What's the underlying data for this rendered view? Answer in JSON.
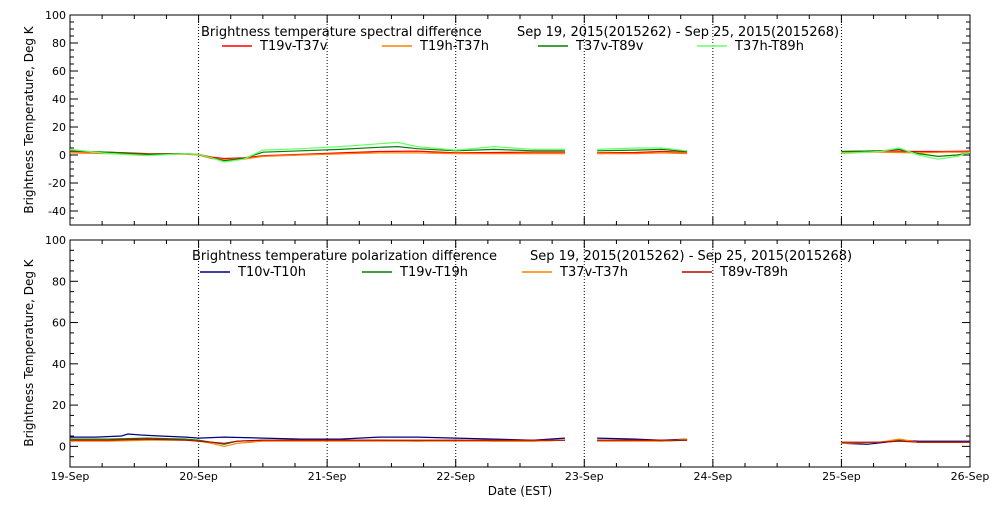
{
  "chart_data": [
    {
      "type": "line",
      "title": "Brightness temperature spectral difference",
      "date_range": "Sep 19, 2015(2015262) - Sep 25, 2015(2015268)",
      "ylabel": "Brightness Temperature, Deg K",
      "xlabel": "",
      "ylim": [
        -50,
        100
      ],
      "yticks": [
        -40,
        -20,
        0,
        20,
        40,
        60,
        80,
        100
      ],
      "xlim": [
        0,
        7
      ],
      "grid": "vertical dotted at each day",
      "legend_position": "top",
      "series": [
        {
          "name": "T19v-T37v",
          "color": "#ff0000",
          "points": [
            [
              0.0,
              2.5
            ],
            [
              0.3,
              2.0
            ],
            [
              0.6,
              1.0
            ],
            [
              0.9,
              0.8
            ],
            [
              1.0,
              0.5
            ],
            [
              1.1,
              -1.5
            ],
            [
              1.2,
              -2.5
            ],
            [
              1.35,
              -2.0
            ],
            [
              1.5,
              -0.5
            ],
            [
              1.8,
              0.5
            ],
            [
              2.1,
              1.5
            ],
            [
              2.4,
              2.5
            ],
            [
              2.7,
              2.8
            ],
            [
              3.0,
              1.5
            ],
            [
              3.3,
              1.8
            ],
            [
              3.6,
              2.0
            ],
            [
              3.85,
              2.0
            ],
            null,
            [
              4.1,
              1.5
            ],
            [
              4.4,
              1.8
            ],
            [
              4.6,
              2.5
            ],
            [
              4.8,
              2.0
            ],
            null,
            [
              6.0,
              2.5
            ],
            [
              6.3,
              3.0
            ],
            [
              6.6,
              2.5
            ],
            [
              6.8,
              2.5
            ],
            [
              7.0,
              2.8
            ]
          ]
        },
        {
          "name": "T19h-T37h",
          "color": "#ff8000",
          "points": [
            [
              0.0,
              1.5
            ],
            [
              0.3,
              1.0
            ],
            [
              0.6,
              0.5
            ],
            [
              0.9,
              0.5
            ],
            [
              1.0,
              0.0
            ],
            [
              1.1,
              -2.5
            ],
            [
              1.2,
              -3.5
            ],
            [
              1.35,
              -3.0
            ],
            [
              1.5,
              -1.0
            ],
            [
              1.8,
              0.0
            ],
            [
              2.1,
              0.8
            ],
            [
              2.4,
              1.5
            ],
            [
              2.7,
              1.5
            ],
            [
              3.0,
              1.0
            ],
            [
              3.3,
              1.0
            ],
            [
              3.6,
              1.0
            ],
            [
              3.85,
              1.0
            ],
            null,
            [
              4.1,
              1.0
            ],
            [
              4.4,
              1.0
            ],
            [
              4.6,
              1.5
            ],
            [
              4.8,
              1.0
            ],
            null,
            [
              6.0,
              2.0
            ],
            [
              6.3,
              2.0
            ],
            [
              6.6,
              1.5
            ],
            [
              6.8,
              2.0
            ],
            [
              7.0,
              2.0
            ]
          ]
        },
        {
          "name": "T37v-T89v",
          "color": "#008000",
          "points": [
            [
              0.0,
              3.0
            ],
            [
              0.3,
              2.0
            ],
            [
              0.6,
              0.5
            ],
            [
              0.9,
              1.0
            ],
            [
              1.0,
              0.5
            ],
            [
              1.1,
              -2.0
            ],
            [
              1.2,
              -4.0
            ],
            [
              1.35,
              -2.5
            ],
            [
              1.5,
              2.0
            ],
            [
              1.8,
              3.0
            ],
            [
              2.1,
              4.0
            ],
            [
              2.4,
              5.5
            ],
            [
              2.55,
              6.0
            ],
            [
              2.7,
              4.5
            ],
            [
              3.0,
              3.0
            ],
            [
              3.3,
              4.0
            ],
            [
              3.6,
              3.0
            ],
            [
              3.85,
              3.0
            ],
            null,
            [
              4.1,
              3.0
            ],
            [
              4.4,
              3.5
            ],
            [
              4.6,
              4.0
            ],
            [
              4.8,
              2.5
            ],
            null,
            [
              6.0,
              2.5
            ],
            [
              6.3,
              3.0
            ],
            [
              6.45,
              4.0
            ],
            [
              6.6,
              1.0
            ],
            [
              6.75,
              -1.0
            ],
            [
              6.9,
              0.0
            ],
            [
              7.0,
              1.5
            ]
          ]
        },
        {
          "name": "T37h-T89h",
          "color": "#66ff66",
          "points": [
            [
              0.0,
              4.0
            ],
            [
              0.3,
              1.0
            ],
            [
              0.6,
              -0.5
            ],
            [
              0.9,
              1.0
            ],
            [
              1.0,
              0.5
            ],
            [
              1.1,
              -2.0
            ],
            [
              1.2,
              -5.0
            ],
            [
              1.35,
              -3.0
            ],
            [
              1.5,
              3.5
            ],
            [
              1.8,
              4.5
            ],
            [
              2.1,
              6.0
            ],
            [
              2.4,
              8.0
            ],
            [
              2.55,
              9.0
            ],
            [
              2.7,
              6.0
            ],
            [
              3.0,
              3.5
            ],
            [
              3.3,
              6.0
            ],
            [
              3.6,
              4.0
            ],
            [
              3.85,
              4.0
            ],
            null,
            [
              4.1,
              4.0
            ],
            [
              4.4,
              5.0
            ],
            [
              4.6,
              5.0
            ],
            [
              4.8,
              3.0
            ],
            null,
            [
              6.0,
              1.0
            ],
            [
              6.3,
              2.5
            ],
            [
              6.45,
              5.0
            ],
            [
              6.6,
              0.0
            ],
            [
              6.75,
              -3.0
            ],
            [
              6.9,
              -1.0
            ],
            [
              7.0,
              2.0
            ]
          ]
        }
      ]
    },
    {
      "type": "line",
      "title": "Brightness temperature polarization difference",
      "date_range": "Sep 19, 2015(2015262) - Sep 25, 2015(2015268)",
      "ylabel": "Brightness Temperature, Deg K",
      "xlabel": "Date (EST)",
      "ylim": [
        -10,
        100
      ],
      "yticks": [
        0,
        20,
        40,
        60,
        80,
        100
      ],
      "xlim": [
        0,
        7
      ],
      "xticks": [
        "19-Sep",
        "20-Sep",
        "21-Sep",
        "22-Sep",
        "23-Sep",
        "24-Sep",
        "25-Sep",
        "26-Sep"
      ],
      "grid": "vertical dotted at each day",
      "legend_position": "top",
      "series": [
        {
          "name": "T10v-T10h",
          "color": "#000080",
          "points": [
            [
              0.0,
              4.5
            ],
            [
              0.2,
              4.5
            ],
            [
              0.4,
              5.0
            ],
            [
              0.45,
              6.0
            ],
            [
              0.55,
              5.5
            ],
            [
              0.7,
              5.0
            ],
            [
              0.9,
              4.5
            ],
            [
              1.0,
              4.0
            ],
            [
              1.2,
              4.5
            ],
            [
              1.5,
              4.0
            ],
            [
              1.8,
              3.5
            ],
            [
              2.1,
              3.5
            ],
            [
              2.4,
              4.5
            ],
            [
              2.7,
              4.5
            ],
            [
              3.0,
              4.0
            ],
            [
              3.3,
              3.5
            ],
            [
              3.6,
              3.0
            ],
            [
              3.85,
              4.0
            ],
            null,
            [
              4.1,
              4.0
            ],
            [
              4.4,
              3.5
            ],
            [
              4.6,
              3.0
            ],
            [
              4.8,
              3.5
            ],
            null,
            [
              6.0,
              1.5
            ],
            [
              6.2,
              1.0
            ],
            [
              6.35,
              2.0
            ],
            [
              6.45,
              3.0
            ],
            [
              6.6,
              2.5
            ],
            [
              6.8,
              2.5
            ],
            [
              7.0,
              2.5
            ]
          ]
        },
        {
          "name": "T19v-T19h",
          "color": "#008000",
          "points": [
            [
              0.0,
              3.5
            ],
            [
              0.3,
              3.5
            ],
            [
              0.6,
              4.0
            ],
            [
              0.9,
              3.5
            ],
            [
              1.0,
              3.0
            ],
            [
              1.1,
              2.0
            ],
            [
              1.2,
              1.0
            ],
            [
              1.3,
              2.5
            ],
            [
              1.5,
              3.0
            ],
            [
              1.8,
              3.0
            ],
            [
              2.1,
              3.0
            ],
            [
              2.4,
              3.0
            ],
            [
              2.7,
              2.5
            ],
            [
              3.0,
              3.0
            ],
            [
              3.3,
              2.5
            ],
            [
              3.6,
              2.5
            ],
            [
              3.85,
              3.0
            ],
            null,
            [
              4.1,
              3.0
            ],
            [
              4.4,
              3.0
            ],
            [
              4.6,
              2.5
            ],
            [
              4.8,
              3.0
            ],
            null,
            [
              6.0,
              1.5
            ],
            [
              6.3,
              2.0
            ],
            [
              6.45,
              3.0
            ],
            [
              6.6,
              2.0
            ],
            [
              6.8,
              2.0
            ],
            [
              7.0,
              2.0
            ]
          ]
        },
        {
          "name": "T37v-T37h",
          "color": "#ff8000",
          "points": [
            [
              0.0,
              2.5
            ],
            [
              0.3,
              2.5
            ],
            [
              0.6,
              3.0
            ],
            [
              0.9,
              3.0
            ],
            [
              1.0,
              2.5
            ],
            [
              1.1,
              1.5
            ],
            [
              1.2,
              0.0
            ],
            [
              1.3,
              1.5
            ],
            [
              1.5,
              2.5
            ],
            [
              1.8,
              2.5
            ],
            [
              2.1,
              2.5
            ],
            [
              2.4,
              2.5
            ],
            [
              2.7,
              2.5
            ],
            [
              3.0,
              2.5
            ],
            [
              3.3,
              2.5
            ],
            [
              3.6,
              2.5
            ],
            [
              3.85,
              3.0
            ],
            null,
            [
              4.1,
              2.5
            ],
            [
              4.4,
              2.5
            ],
            [
              4.6,
              2.5
            ],
            [
              4.8,
              3.5
            ],
            null,
            [
              6.0,
              1.5
            ],
            [
              6.3,
              2.0
            ],
            [
              6.45,
              3.5
            ],
            [
              6.6,
              2.0
            ],
            [
              6.8,
              2.0
            ],
            [
              7.0,
              2.0
            ]
          ]
        },
        {
          "name": "T89v-T89h",
          "color": "#c00000",
          "points": [
            [
              0.0,
              3.0
            ],
            [
              0.3,
              3.0
            ],
            [
              0.6,
              3.5
            ],
            [
              0.9,
              3.0
            ],
            [
              1.0,
              2.5
            ],
            [
              1.1,
              2.0
            ],
            [
              1.2,
              1.5
            ],
            [
              1.3,
              2.5
            ],
            [
              1.5,
              3.0
            ],
            [
              1.8,
              3.0
            ],
            [
              2.1,
              3.0
            ],
            [
              2.4,
              3.0
            ],
            [
              2.7,
              3.0
            ],
            [
              3.0,
              3.0
            ],
            [
              3.3,
              3.0
            ],
            [
              3.6,
              3.0
            ],
            [
              3.85,
              3.0
            ],
            null,
            [
              4.1,
              3.0
            ],
            [
              4.4,
              3.0
            ],
            [
              4.6,
              3.0
            ],
            [
              4.8,
              3.0
            ],
            null,
            [
              6.0,
              2.0
            ],
            [
              6.3,
              2.0
            ],
            [
              6.45,
              2.5
            ],
            [
              6.6,
              2.0
            ],
            [
              6.8,
              2.0
            ],
            [
              7.0,
              2.0
            ]
          ]
        }
      ]
    }
  ]
}
